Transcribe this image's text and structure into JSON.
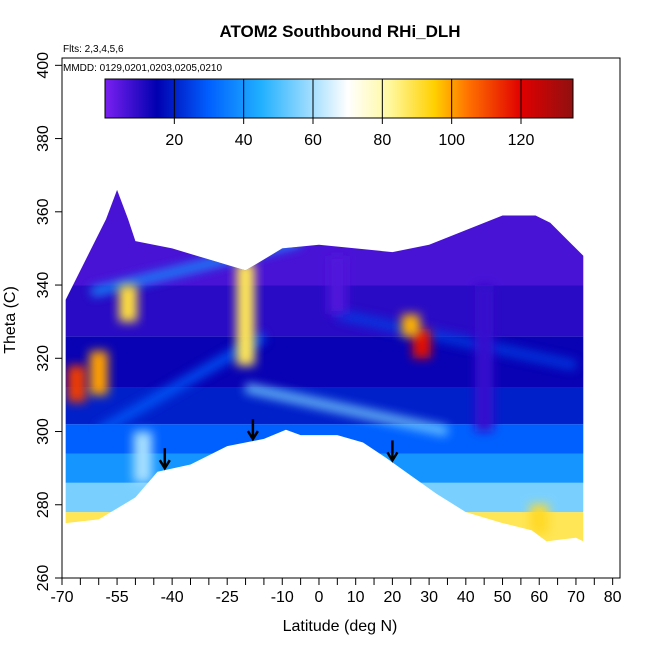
{
  "chart_data": {
    "type": "heatmap",
    "title": "ATOM2 Southbound RHi_DLH",
    "annotations": [
      "Flts: 2,3,4,5,6",
      "MMDD: 0129,0201,0203,0205,0210"
    ],
    "xlabel": "Latitude (deg N)",
    "ylabel": "Theta (C)",
    "xlim": [
      -70,
      82
    ],
    "ylim": [
      260,
      402
    ],
    "x_ticks": [
      -70,
      -55,
      -40,
      -25,
      -10,
      0,
      10,
      20,
      30,
      40,
      50,
      60,
      70,
      80
    ],
    "x_minor_ticks": [
      -65,
      -60,
      -50,
      -45,
      -35,
      -30,
      -20,
      -15,
      -5,
      5,
      15,
      25,
      35,
      45,
      55,
      65,
      75
    ],
    "y_ticks": [
      260,
      280,
      300,
      320,
      340,
      360,
      380,
      400
    ],
    "colorbar": {
      "range": [
        0,
        135
      ],
      "ticks": [
        20,
        40,
        60,
        80,
        100,
        120
      ],
      "colors": [
        "#7a20f0",
        "#0000b0",
        "#0060ff",
        "#20b0ff",
        "#ffffff",
        "#fff8a0",
        "#ffd000",
        "#ff7000",
        "#e00000",
        "#901010"
      ],
      "stops": [
        0,
        15,
        30,
        45,
        70,
        82,
        95,
        105,
        120,
        135
      ]
    },
    "domain_top": [
      [
        -69,
        336
      ],
      [
        -63,
        348
      ],
      [
        -58,
        358
      ],
      [
        -55,
        366
      ],
      [
        -52,
        358
      ],
      [
        -50,
        352
      ],
      [
        -40,
        350
      ],
      [
        -20,
        344
      ],
      [
        -10,
        350
      ],
      [
        0,
        351
      ],
      [
        20,
        349
      ],
      [
        30,
        351
      ],
      [
        50,
        359
      ],
      [
        59,
        359
      ],
      [
        63,
        357
      ],
      [
        68,
        352
      ],
      [
        72,
        348
      ],
      [
        72,
        270
      ]
    ],
    "domain_bottom": [
      [
        -69,
        275
      ],
      [
        -60,
        276
      ],
      [
        -50,
        282
      ],
      [
        -44,
        289
      ],
      [
        -35,
        291
      ],
      [
        -25,
        296
      ],
      [
        -15,
        298
      ],
      [
        -9,
        300.5
      ],
      [
        -5,
        299
      ],
      [
        5,
        299
      ],
      [
        12,
        297
      ],
      [
        18,
        293
      ],
      [
        25,
        288
      ],
      [
        32,
        283
      ],
      [
        40,
        278
      ],
      [
        50,
        275
      ],
      [
        58,
        273
      ],
      [
        62,
        270
      ],
      [
        66,
        270.5
      ],
      [
        70,
        271
      ],
      [
        72,
        270
      ]
    ],
    "tropopause_arrows": [
      -42,
      -18,
      20
    ],
    "rhi_sections": [
      {
        "lat": -66,
        "theta_lo": 308,
        "theta_hi": 318,
        "value": 112
      },
      {
        "lat": -60,
        "theta_lo": 310,
        "theta_hi": 322,
        "value": 100
      },
      {
        "lat": -52,
        "theta_lo": 330,
        "theta_hi": 340,
        "value": 90
      },
      {
        "lat": -48,
        "theta_lo": 286,
        "theta_hi": 300,
        "value": 60
      },
      {
        "lat": -20,
        "theta_lo": 318,
        "theta_hi": 346,
        "value": 88
      },
      {
        "lat": 28,
        "theta_lo": 320,
        "theta_hi": 328,
        "value": 118
      },
      {
        "lat": 25,
        "theta_lo": 326,
        "theta_hi": 332,
        "value": 98
      },
      {
        "lat": 60,
        "theta_lo": 272,
        "theta_hi": 280,
        "value": 92
      },
      {
        "lat": 45,
        "theta_lo": 300,
        "theta_hi": 340,
        "value": 8
      },
      {
        "lat": 5,
        "theta_lo": 332,
        "theta_hi": 348,
        "value": 5
      }
    ]
  }
}
